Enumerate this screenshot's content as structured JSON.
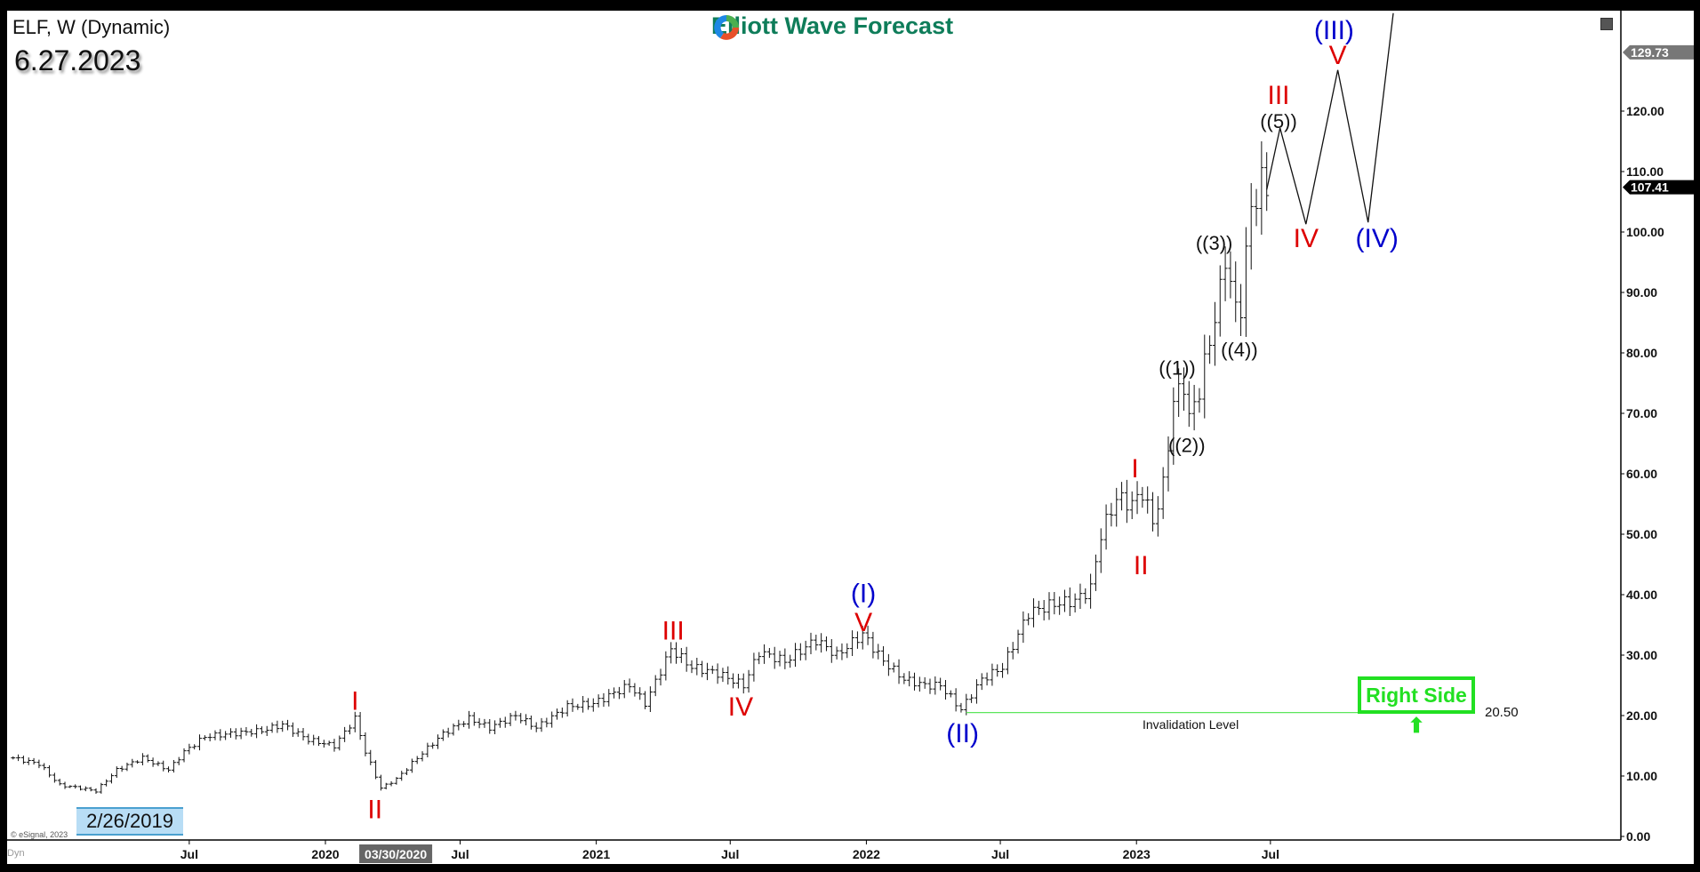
{
  "header": {
    "symbol_title": "ELF, W (Dynamic)",
    "chart_date": "6.27.2023",
    "logo_text": "Elliott Wave Forecast",
    "start_date_label": "2/26/2019",
    "copyright": "© eSignal, 2023",
    "dyn_label": "Dyn"
  },
  "colors": {
    "red": "#dd0000",
    "blue": "#0000cc",
    "black": "#111111",
    "green": "#22e022",
    "logo_green": "#0f7d5a"
  },
  "chart_data": {
    "type": "ohlc-bar",
    "interval": "weekly",
    "ylim": [
      0,
      130
    ],
    "y_ticks": [
      "0.00",
      "10.00",
      "20.00",
      "30.00",
      "40.00",
      "50.00",
      "60.00",
      "70.00",
      "80.00",
      "90.00",
      "100.00",
      "110.00",
      "120.00"
    ],
    "x_ticks": [
      {
        "date": "2019-07-01",
        "label": "Jul"
      },
      {
        "date": "2020-01-01",
        "label": "2020"
      },
      {
        "date": "2020-07-01",
        "label": "Jul"
      },
      {
        "date": "2021-01-01",
        "label": "2021"
      },
      {
        "date": "2021-07-01",
        "label": "Jul"
      },
      {
        "date": "2022-01-01",
        "label": "2022"
      },
      {
        "date": "2022-07-01",
        "label": "Jul"
      },
      {
        "date": "2023-01-01",
        "label": "2023"
      },
      {
        "date": "2023-07-01",
        "label": "Jul"
      }
    ],
    "cursor_date_label": {
      "date": "2020-03-30",
      "label": "03/30/2020"
    },
    "price_tags": [
      {
        "value": 129.73,
        "label": "129.73",
        "style": "gray"
      },
      {
        "value": 107.41,
        "label": "107.41",
        "style": "black"
      }
    ],
    "price_path": [
      [
        "2018-11-05",
        13
      ],
      [
        "2018-12-10",
        12
      ],
      [
        "2019-01-07",
        8.5
      ],
      [
        "2019-02-04",
        8
      ],
      [
        "2019-02-25",
        7.5
      ],
      [
        "2019-03-25",
        11
      ],
      [
        "2019-04-29",
        13
      ],
      [
        "2019-06-03",
        11
      ],
      [
        "2019-06-24",
        14
      ],
      [
        "2019-07-22",
        16.5
      ],
      [
        "2019-08-26",
        17
      ],
      [
        "2019-10-07",
        17.5
      ],
      [
        "2019-11-04",
        18.5
      ],
      [
        "2019-12-09",
        16
      ],
      [
        "2020-01-13",
        15
      ],
      [
        "2020-02-10",
        19.5
      ],
      [
        "2020-02-24",
        14
      ],
      [
        "2020-03-16",
        8
      ],
      [
        "2020-04-06",
        9.5
      ],
      [
        "2020-05-04",
        13
      ],
      [
        "2020-06-08",
        17
      ],
      [
        "2020-07-13",
        19.5
      ],
      [
        "2020-08-10",
        18
      ],
      [
        "2020-09-14",
        20
      ],
      [
        "2020-10-12",
        18
      ],
      [
        "2020-11-23",
        21.5
      ],
      [
        "2020-12-28",
        22
      ],
      [
        "2021-02-15",
        25
      ],
      [
        "2021-03-08",
        22
      ],
      [
        "2021-04-12",
        31
      ],
      [
        "2021-05-10",
        28
      ],
      [
        "2021-06-14",
        27
      ],
      [
        "2021-07-19",
        25
      ],
      [
        "2021-08-09",
        30.5
      ],
      [
        "2021-09-13",
        29
      ],
      [
        "2021-10-25",
        32.5
      ],
      [
        "2021-11-22",
        30
      ],
      [
        "2021-12-27",
        33.5
      ],
      [
        "2022-01-24",
        29
      ],
      [
        "2022-02-21",
        26
      ],
      [
        "2022-03-21",
        25
      ],
      [
        "2022-04-11",
        25
      ],
      [
        "2022-05-09",
        21
      ],
      [
        "2022-06-06",
        26
      ],
      [
        "2022-07-04",
        28
      ],
      [
        "2022-08-08",
        37
      ],
      [
        "2022-09-12",
        38.5
      ],
      [
        "2022-10-10",
        39
      ],
      [
        "2022-10-31",
        41
      ],
      [
        "2022-11-14",
        50
      ],
      [
        "2022-12-05",
        56
      ],
      [
        "2022-12-26",
        55
      ],
      [
        "2023-01-09",
        57
      ],
      [
        "2023-01-23",
        52
      ],
      [
        "2023-02-06",
        58
      ],
      [
        "2023-02-20",
        72
      ],
      [
        "2023-03-06",
        75
      ],
      [
        "2023-03-13",
        69
      ],
      [
        "2023-03-27",
        74
      ],
      [
        "2023-04-10",
        82
      ],
      [
        "2023-04-24",
        90
      ],
      [
        "2023-05-01",
        96
      ],
      [
        "2023-05-15",
        87
      ],
      [
        "2023-05-22",
        88
      ],
      [
        "2023-06-05",
        104
      ],
      [
        "2023-06-19",
        108
      ],
      [
        "2023-06-26",
        107.41
      ]
    ],
    "projection_path": [
      [
        "2023-06-26",
        107
      ],
      [
        "2023-07-14",
        117.2
      ],
      [
        "2023-08-18",
        101.3
      ],
      [
        "2023-09-30",
        126.8
      ],
      [
        "2023-11-10",
        101.6
      ],
      [
        "2023-12-14",
        136.2
      ]
    ],
    "invalidation": {
      "value": 20.5,
      "value_label": "20.50",
      "label": "Invalidation Level",
      "from": "2022-05-16",
      "to": "2024-03-10"
    },
    "right_side_label": "Right Side",
    "wave_labels": [
      {
        "text": "I",
        "date": "2020-02-10",
        "price": 22.6,
        "color": "red"
      },
      {
        "text": "II",
        "date": "2020-03-08",
        "price": 4.6,
        "color": "red"
      },
      {
        "text": "III",
        "date": "2021-04-15",
        "price": 34.2,
        "color": "red"
      },
      {
        "text": "IV",
        "date": "2021-07-15",
        "price": 21.6,
        "color": "red"
      },
      {
        "text": "V",
        "date": "2021-12-28",
        "price": 35.6,
        "color": "red"
      },
      {
        "text": "(I)",
        "date": "2021-12-28",
        "price": 40.4,
        "color": "blue"
      },
      {
        "text": "(II)",
        "date": "2022-05-11",
        "price": 17.2,
        "color": "blue"
      },
      {
        "text": "I",
        "date": "2022-12-30",
        "price": 61,
        "color": "red"
      },
      {
        "text": "II",
        "date": "2023-01-07",
        "price": 45,
        "color": "red"
      },
      {
        "text": "((1))",
        "date": "2023-02-25",
        "price": 78,
        "color": "black"
      },
      {
        "text": "((2))",
        "date": "2023-03-10",
        "price": 65.2,
        "color": "black"
      },
      {
        "text": "((3))",
        "date": "2023-04-16",
        "price": 98.7,
        "color": "black"
      },
      {
        "text": "((4))",
        "date": "2023-05-20",
        "price": 81,
        "color": "black"
      },
      {
        "text": "((5))",
        "date": "2023-07-12",
        "price": 118.8,
        "color": "black"
      },
      {
        "text": "III",
        "date": "2023-07-12",
        "price": 122.8,
        "color": "red"
      },
      {
        "text": "IV",
        "date": "2023-08-18",
        "price": 99.1,
        "color": "red"
      },
      {
        "text": "V",
        "date": "2023-09-30",
        "price": 129.4,
        "color": "red"
      },
      {
        "text": "(III)",
        "date": "2023-09-25",
        "price": 133.5,
        "color": "blue"
      },
      {
        "text": "(IV)",
        "date": "2023-11-22",
        "price": 99.1,
        "color": "blue"
      }
    ]
  }
}
